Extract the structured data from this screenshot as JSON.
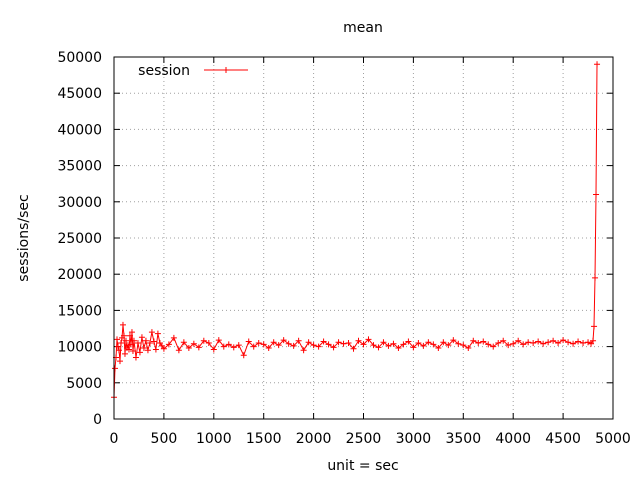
{
  "chart_data": {
    "type": "line",
    "title": "mean",
    "xlabel": "unit = sec",
    "ylabel": "sessions/sec",
    "xlim": [
      0,
      5000
    ],
    "ylim": [
      0,
      50000
    ],
    "x_ticks": [
      "0",
      "500",
      "1000",
      "1500",
      "2000",
      "2500",
      "3000",
      "3500",
      "4000",
      "4500",
      "5000"
    ],
    "y_ticks": [
      "0",
      "5000",
      "10000",
      "15000",
      "20000",
      "25000",
      "30000",
      "35000",
      "40000",
      "45000",
      "50000"
    ],
    "grid": true,
    "legend_position": "top-left",
    "marker": "plus",
    "series": [
      {
        "name": "session",
        "color": "#ff0000",
        "x": [
          0,
          10,
          20,
          30,
          40,
          50,
          60,
          70,
          80,
          90,
          100,
          110,
          120,
          130,
          140,
          150,
          160,
          170,
          180,
          190,
          200,
          220,
          240,
          260,
          280,
          300,
          320,
          340,
          360,
          380,
          400,
          420,
          440,
          460,
          480,
          500,
          550,
          600,
          650,
          700,
          750,
          800,
          850,
          900,
          950,
          1000,
          1050,
          1100,
          1150,
          1200,
          1250,
          1300,
          1350,
          1400,
          1450,
          1500,
          1550,
          1600,
          1650,
          1700,
          1750,
          1800,
          1850,
          1900,
          1950,
          2000,
          2050,
          2100,
          2150,
          2200,
          2250,
          2300,
          2350,
          2400,
          2450,
          2500,
          2550,
          2600,
          2650,
          2700,
          2750,
          2800,
          2850,
          2900,
          2950,
          3000,
          3050,
          3100,
          3150,
          3200,
          3250,
          3300,
          3350,
          3400,
          3450,
          3500,
          3550,
          3600,
          3650,
          3700,
          3750,
          3800,
          3850,
          3900,
          3950,
          4000,
          4050,
          4100,
          4150,
          4200,
          4250,
          4300,
          4350,
          4400,
          4450,
          4500,
          4550,
          4600,
          4650,
          4700,
          4750,
          4780,
          4800,
          4810,
          4820,
          4830,
          4840
        ],
        "y": [
          3000,
          7000,
          8500,
          11000,
          10000,
          9500,
          8000,
          10500,
          11200,
          13000,
          11500,
          9000,
          10800,
          9800,
          10200,
          9600,
          11500,
          10300,
          12000,
          9400,
          10800,
          8500,
          10500,
          9200,
          11300,
          9800,
          10800,
          9500,
          10500,
          12000,
          10700,
          9600,
          11800,
          10500,
          10100,
          9700,
          10300,
          11200,
          9500,
          10600,
          9800,
          10400,
          9900,
          10800,
          10500,
          9600,
          10900,
          10000,
          10300,
          9900,
          10200,
          8800,
          10700,
          10000,
          10500,
          10300,
          9800,
          10600,
          10200,
          10900,
          10400,
          10100,
          10800,
          9500,
          10600,
          10200,
          10000,
          10700,
          10300,
          9900,
          10600,
          10400,
          10500,
          9700,
          10800,
          10300,
          11000,
          10200,
          9900,
          10600,
          10100,
          10400,
          9800,
          10300,
          10700,
          9900,
          10500,
          10100,
          10600,
          10300,
          9800,
          10600,
          10200,
          10900,
          10400,
          10200,
          9800,
          10800,
          10500,
          10700,
          10300,
          10000,
          10500,
          10800,
          10200,
          10400,
          10800,
          10300,
          10600,
          10500,
          10700,
          10400,
          10600,
          10800,
          10500,
          10900,
          10600,
          10400,
          10700,
          10500,
          10600,
          10400,
          10800,
          12800,
          19500,
          31000,
          49000
        ]
      }
    ]
  }
}
